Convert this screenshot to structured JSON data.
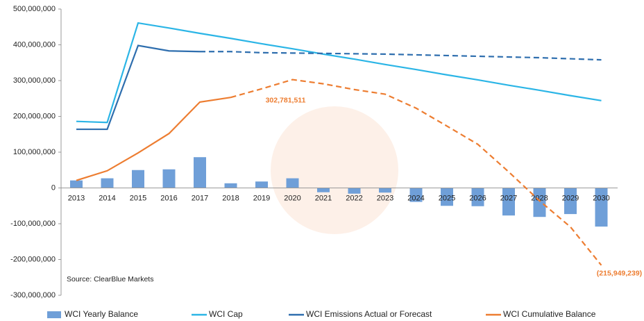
{
  "chart_data": {
    "type": "combo",
    "categories": [
      "2013",
      "2014",
      "2015",
      "2016",
      "2017",
      "2018",
      "2019",
      "2020",
      "2021",
      "2022",
      "2023",
      "2024",
      "2025",
      "2026",
      "2027",
      "2028",
      "2029",
      "2030"
    ],
    "series": [
      {
        "name": "WCI Yearly Balance",
        "type": "bar",
        "color": "#6f9fd8",
        "values": [
          21000000,
          27000000,
          50000000,
          52000000,
          86000000,
          13000000,
          18000000,
          27000000,
          -12000000,
          -16000000,
          -13000000,
          -39000000,
          -50000000,
          -51000000,
          -77000000,
          -81000000,
          -73000000,
          -108000000
        ]
      },
      {
        "name": "WCI Cap",
        "type": "line",
        "color": "#2bb5e6",
        "values": [
          186000000,
          183000000,
          461000000,
          447000000,
          432000000,
          418000000,
          403000000,
          389000000,
          374000000,
          360000000,
          345000000,
          331000000,
          316000000,
          302000000,
          287000000,
          273000000,
          258000000,
          244000000
        ]
      },
      {
        "name": "WCI Emissions Actual or Forecast",
        "type": "line",
        "color": "#2e6eae",
        "dashed_from": "2017",
        "values": [
          164000000,
          164000000,
          398000000,
          383000000,
          381000000,
          381000000,
          378000000,
          377000000,
          376000000,
          375000000,
          374000000,
          372000000,
          370000000,
          368000000,
          366000000,
          364000000,
          361000000,
          358000000
        ]
      },
      {
        "name": "WCI Cumulative Balance",
        "type": "line",
        "color": "#ed7d31",
        "dashed_from": "2018",
        "values": [
          21000000,
          48000000,
          98000000,
          152000000,
          240000000,
          253000000,
          277000000,
          302781511,
          291000000,
          275000000,
          262000000,
          223000000,
          173000000,
          122000000,
          45000000,
          -36000000,
          -109000000,
          -215949239
        ],
        "value_labels": [
          null,
          null,
          null,
          null,
          null,
          null,
          null,
          "302,781,511",
          null,
          null,
          null,
          null,
          null,
          null,
          null,
          null,
          null,
          "(215,949,239)"
        ]
      }
    ],
    "ylim": [
      -300000000,
      500000000
    ],
    "yticks": [
      {
        "value": -300000000,
        "label": "-300,000,000"
      },
      {
        "value": -200000000,
        "label": "-200,000,000"
      },
      {
        "value": -100000000,
        "label": "-100,000,000"
      },
      0,
      {
        "value": 100000000,
        "label": "100,000,000"
      },
      {
        "value": 200000000,
        "label": "200,000,000"
      },
      {
        "value": 300000000,
        "label": "300,000,000"
      },
      {
        "value": 400000000,
        "label": "400,000,000"
      },
      {
        "value": 500000000,
        "label": "500,000,000"
      }
    ],
    "annotation": "Source: ClearBlue Markets",
    "legend": "bottom"
  }
}
